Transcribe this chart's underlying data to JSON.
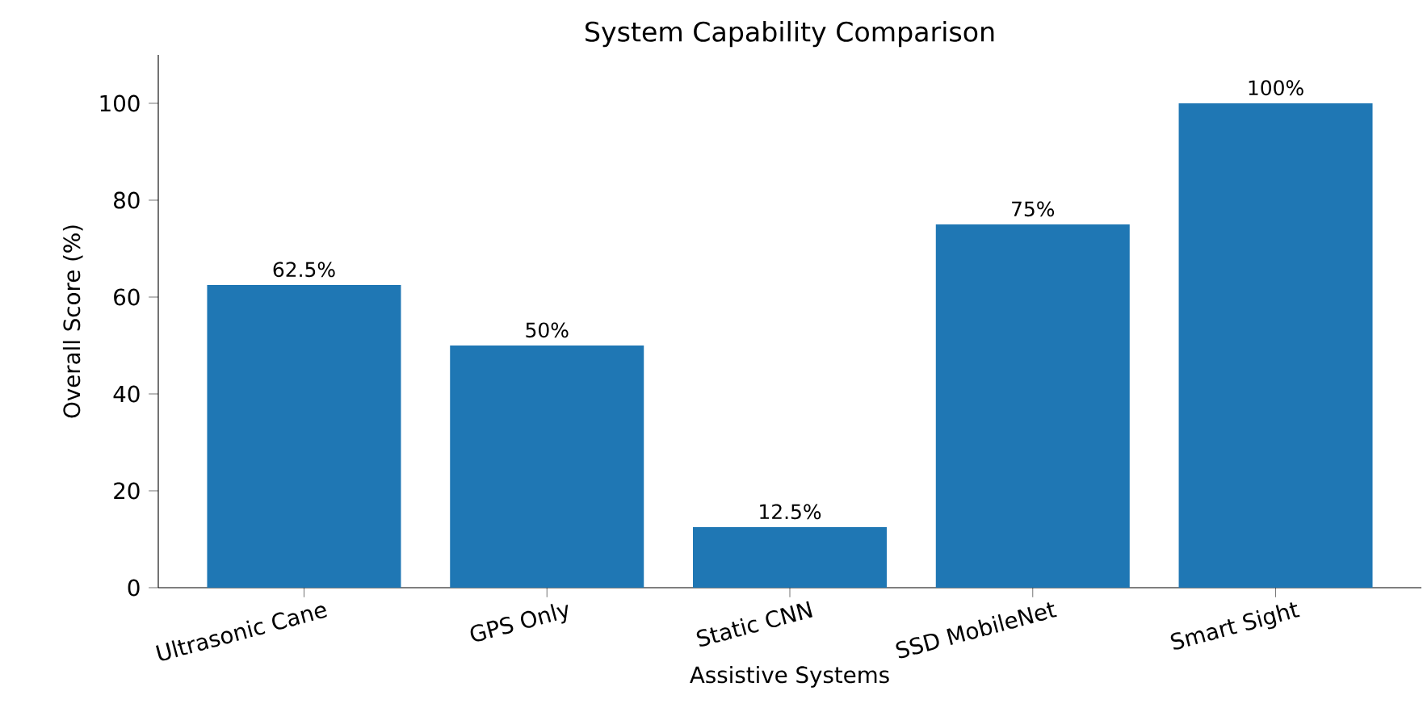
{
  "chart_data": {
    "type": "bar",
    "title": "System Capability Comparison",
    "xlabel": "Assistive Systems",
    "ylabel": "Overall Score (%)",
    "categories": [
      "Ultrasonic Cane",
      "GPS Only",
      "Static CNN",
      "SSD MobileNet",
      "Smart Sight"
    ],
    "values": [
      62.5,
      50,
      12.5,
      75,
      100
    ],
    "value_labels": [
      "62.5%",
      "50%",
      "12.5%",
      "75%",
      "100%"
    ],
    "color": "#1f77b4",
    "ylim": [
      0,
      110
    ],
    "yticks": [
      0,
      20,
      40,
      60,
      80,
      100
    ],
    "grid": false
  }
}
